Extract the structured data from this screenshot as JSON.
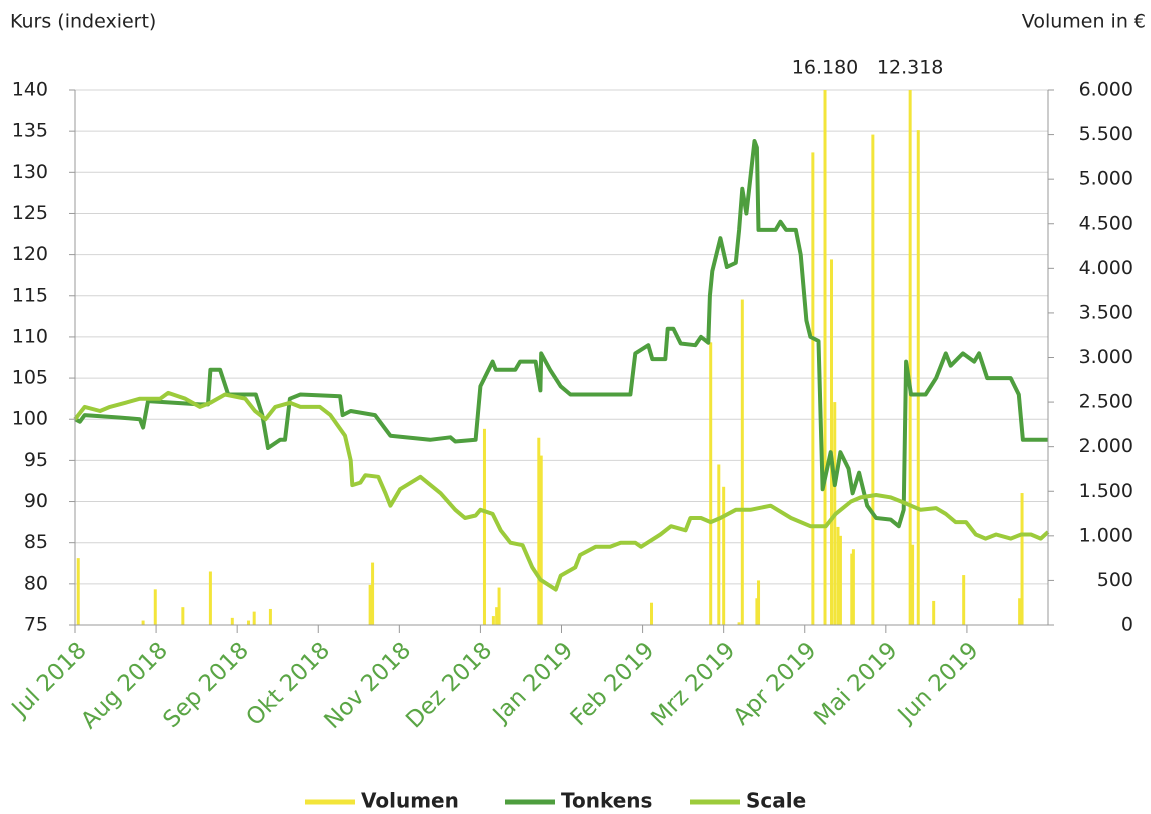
{
  "chart_data": {
    "type": "combo",
    "ylabel": "Kurs (indexiert)",
    "y2label": "Volumen in €",
    "xlim": [
      0,
      12
    ],
    "xticks": [
      {
        "value": 0,
        "label": "Jul 2018"
      },
      {
        "value": 1,
        "label": "Aug 2018"
      },
      {
        "value": 2,
        "label": "Sep 2018"
      },
      {
        "value": 3,
        "label": "Okt 2018"
      },
      {
        "value": 4,
        "label": "Nov 2018"
      },
      {
        "value": 5,
        "label": "Dez 2018"
      },
      {
        "value": 6,
        "label": "Jan 2019"
      },
      {
        "value": 7,
        "label": "Feb 2019"
      },
      {
        "value": 8,
        "label": "Mrz 2019"
      },
      {
        "value": 9,
        "label": "Apr 2019"
      },
      {
        "value": 10,
        "label": "Mai 2019"
      },
      {
        "value": 11,
        "label": "Jun 2019"
      }
    ],
    "ylim": [
      75,
      140
    ],
    "yticks": [
      75,
      80,
      85,
      90,
      95,
      100,
      105,
      110,
      115,
      120,
      125,
      130,
      135,
      140
    ],
    "y2lim": [
      0,
      6000
    ],
    "y2ticks": [
      0,
      500,
      {
        "value": 1000,
        "label": "1.000"
      },
      {
        "value": 1500,
        "label": "1.500"
      },
      {
        "value": 2000,
        "label": "2.000"
      },
      {
        "value": 2500,
        "label": "2.500"
      },
      {
        "value": 3000,
        "label": "3.000"
      },
      {
        "value": 3500,
        "label": "3.500"
      },
      {
        "value": 4000,
        "label": "4.000"
      },
      {
        "value": 4500,
        "label": "4.500"
      },
      {
        "value": 5000,
        "label": "5.000"
      },
      {
        "value": 5500,
        "label": "5.500"
      },
      {
        "value": 6000,
        "label": "6.000"
      }
    ],
    "grid": true,
    "legend": "bottom",
    "series": [
      {
        "name": "Volumen",
        "type": "bar",
        "axis": "y2",
        "color": "#f3e53a",
        "x": [
          0.04,
          0.84,
          0.99,
          1.33,
          1.67,
          1.94,
          2.14,
          2.21,
          2.41,
          3.64,
          3.67,
          5.05,
          5.16,
          5.2,
          5.23,
          5.72,
          5.75,
          7.11,
          7.84,
          7.94,
          8.0,
          8.19,
          8.23,
          8.41,
          8.43,
          9.1,
          9.25,
          9.33,
          9.37,
          9.41,
          9.44,
          9.58,
          9.6,
          9.84,
          10.3,
          10.33,
          10.4,
          10.59,
          10.96,
          11.65,
          11.68
        ],
        "values": [
          750,
          50,
          400,
          200,
          600,
          80,
          50,
          150,
          180,
          450,
          700,
          2200,
          100,
          200,
          420,
          2100,
          1900,
          250,
          3170,
          1800,
          1550,
          30,
          3650,
          300,
          500,
          5300,
          16180,
          4100,
          2500,
          1100,
          1000,
          800,
          850,
          5500,
          12318,
          900,
          5550,
          270,
          560,
          300,
          1480
        ],
        "value_labels": [
          null,
          null,
          null,
          null,
          null,
          null,
          null,
          null,
          null,
          null,
          null,
          null,
          null,
          null,
          null,
          null,
          null,
          null,
          null,
          null,
          null,
          null,
          null,
          null,
          null,
          null,
          "16.180",
          null,
          null,
          null,
          null,
          null,
          null,
          null,
          "12.318",
          null,
          null,
          null,
          null,
          null,
          null
        ]
      },
      {
        "name": "Tonkens",
        "type": "line",
        "color": "#4e9e3e",
        "x": [
          0,
          0.06,
          0.12,
          0.56,
          0.8,
          0.84,
          0.9,
          1.54,
          1.64,
          1.67,
          1.79,
          1.89,
          2.23,
          2.31,
          2.38,
          2.53,
          2.59,
          2.65,
          2.78,
          3.27,
          3.3,
          3.4,
          3.7,
          3.89,
          4.38,
          4.63,
          4.69,
          4.94,
          5.0,
          5.15,
          5.19,
          5.43,
          5.49,
          5.68,
          5.74,
          5.75,
          5.86,
          5.99,
          6.11,
          6.85,
          6.91,
          7.07,
          7.12,
          7.28,
          7.31,
          7.38,
          7.47,
          7.65,
          7.72,
          7.81,
          7.83,
          7.86,
          7.96,
          8.04,
          8.15,
          8.19,
          8.23,
          8.28,
          8.38,
          8.41,
          8.43,
          8.64,
          8.7,
          8.77,
          8.89,
          8.95,
          9.02,
          9.07,
          9.17,
          9.22,
          9.32,
          9.37,
          9.44,
          9.54,
          9.59,
          9.67,
          9.77,
          9.88,
          10.06,
          10.16,
          10.22,
          10.25,
          10.31,
          10.49,
          10.62,
          10.74,
          10.8,
          10.95,
          11.02,
          11.09,
          11.15,
          11.25,
          11.54,
          11.64,
          11.69,
          12
        ],
        "values": [
          100,
          99.7,
          100.5,
          100.2,
          100,
          99,
          102.2,
          101.8,
          101.8,
          106,
          106,
          103,
          103,
          100.5,
          96.5,
          97.5,
          97.5,
          102.5,
          103,
          102.8,
          100.5,
          101,
          100.5,
          98,
          97.5,
          97.8,
          97.3,
          97.5,
          104,
          107,
          106,
          106,
          107,
          107,
          103.5,
          108,
          106,
          104,
          103,
          103,
          108,
          109,
          107.3,
          107.3,
          111,
          111,
          109.2,
          109,
          110,
          109.3,
          115,
          118,
          122,
          118.5,
          119,
          123,
          128,
          125,
          133.8,
          133,
          123,
          123,
          124,
          123,
          123,
          120,
          112,
          110,
          109.5,
          91.5,
          96,
          92,
          96,
          94,
          91,
          93.5,
          89.5,
          88,
          87.8,
          87,
          89,
          107,
          103,
          103,
          105,
          108,
          106.5,
          108,
          107.5,
          107,
          108,
          105,
          105,
          103,
          97.5,
          97.5
        ]
      },
      {
        "name": "Scale",
        "type": "line",
        "color": "#9ccb3b",
        "x": [
          0,
          0.12,
          0.31,
          0.43,
          0.62,
          0.8,
          1.05,
          1.15,
          1.36,
          1.54,
          1.67,
          1.85,
          2.1,
          2.22,
          2.35,
          2.47,
          2.65,
          2.78,
          3.02,
          3.15,
          3.33,
          3.4,
          3.42,
          3.52,
          3.58,
          3.74,
          3.83,
          3.89,
          4.01,
          4.26,
          4.51,
          4.69,
          4.81,
          4.94,
          5.0,
          5.15,
          5.25,
          5.37,
          5.52,
          5.64,
          5.74,
          5.93,
          5.99,
          6.17,
          6.23,
          6.42,
          6.6,
          6.73,
          6.91,
          6.98,
          7.22,
          7.35,
          7.53,
          7.59,
          7.72,
          7.84,
          7.96,
          8.15,
          8.33,
          8.58,
          8.83,
          9.07,
          9.26,
          9.38,
          9.57,
          9.69,
          9.88,
          10.06,
          10.19,
          10.31,
          10.43,
          10.62,
          10.74,
          10.86,
          10.99,
          11.11,
          11.23,
          11.36,
          11.54,
          11.67,
          11.79,
          11.91,
          12
        ],
        "values": [
          100,
          101.5,
          101,
          101.5,
          102,
          102.5,
          102.5,
          103.2,
          102.5,
          101.5,
          102,
          103,
          102.5,
          101,
          100,
          101.5,
          102,
          101.5,
          101.5,
          100.5,
          98,
          95,
          92,
          92.3,
          93.2,
          93,
          91,
          89.5,
          91.5,
          93,
          91,
          89,
          88,
          88.3,
          89,
          88.5,
          86.5,
          85,
          84.7,
          82,
          80.5,
          79.3,
          81,
          82,
          83.5,
          84.5,
          84.5,
          85,
          85,
          84.5,
          86,
          87,
          86.5,
          88,
          88,
          87.5,
          88,
          89,
          89,
          89.5,
          88,
          87,
          87,
          88.5,
          90,
          90.5,
          90.8,
          90.5,
          90,
          89.5,
          89,
          89.2,
          88.5,
          87.5,
          87.5,
          86,
          85.5,
          86,
          85.5,
          86,
          86,
          85.5,
          86.3
        ]
      }
    ]
  }
}
